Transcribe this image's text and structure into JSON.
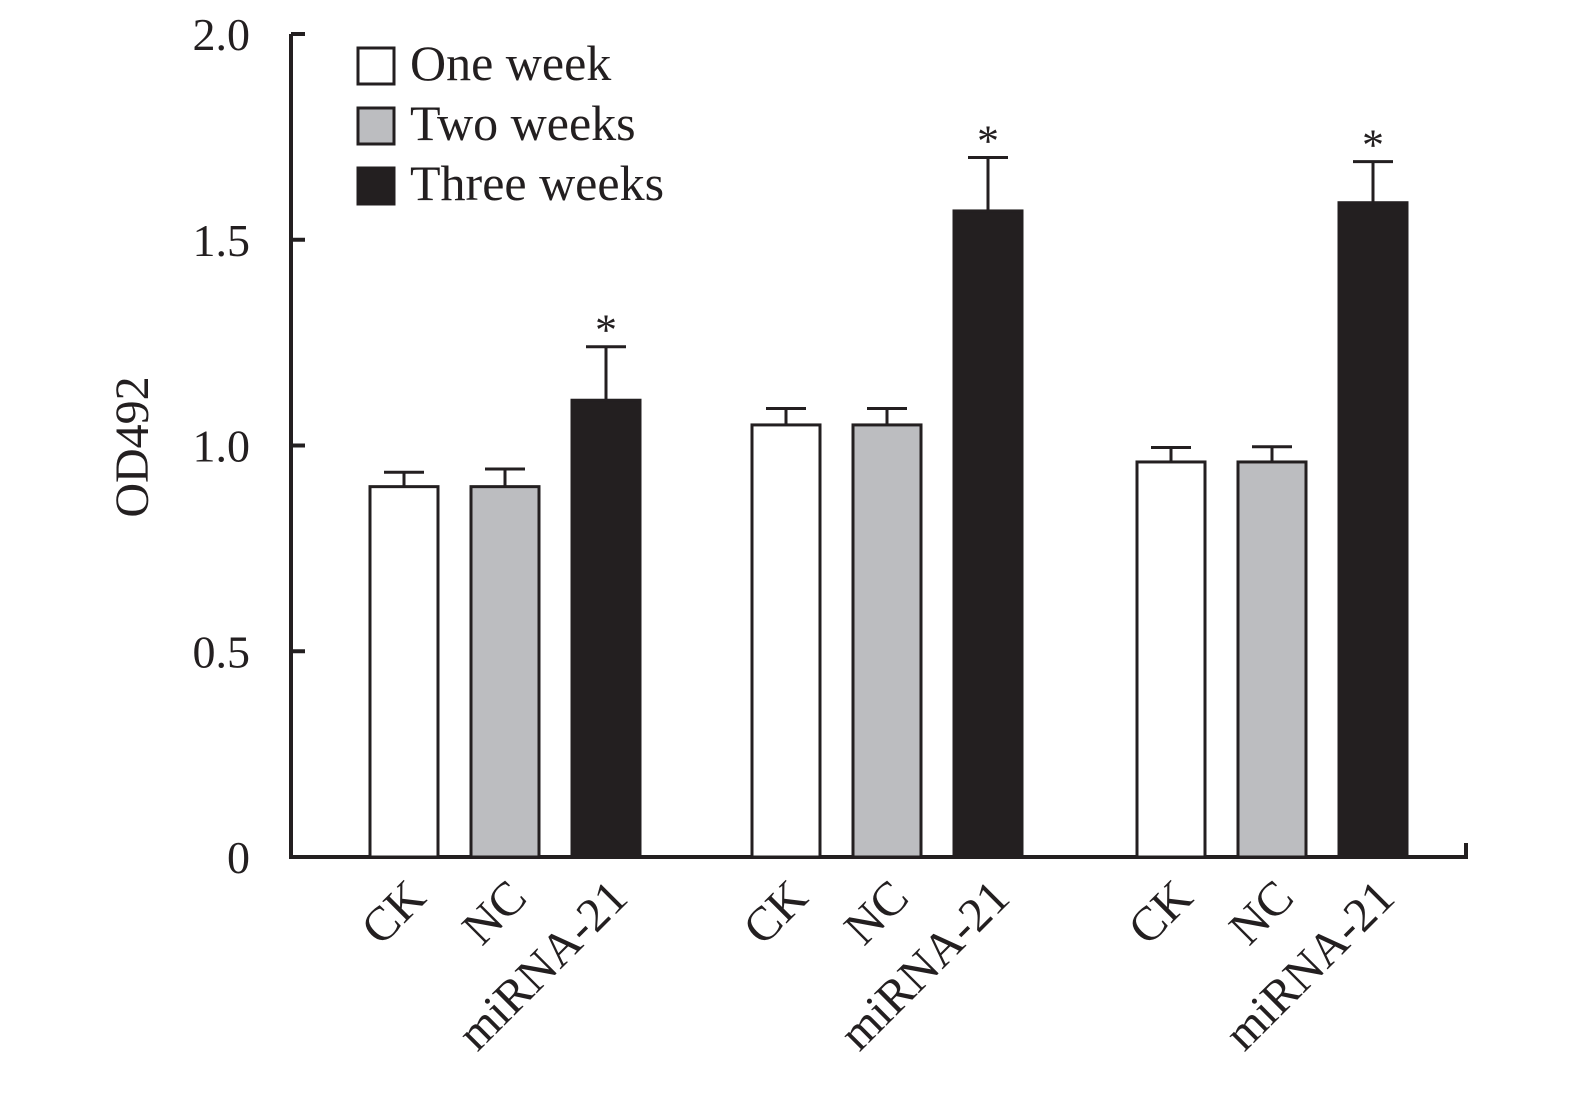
{
  "chart_data": {
    "type": "bar",
    "ylabel": "OD492",
    "xlabel": "",
    "ylim": [
      0,
      2.0
    ],
    "yticks": [
      0,
      0.5,
      1.0,
      1.5,
      2.0
    ],
    "ytick_labels": [
      "0",
      "0.5",
      "1.0",
      "1.5",
      "2.0"
    ],
    "grid": false,
    "legend_position": "top-left",
    "groups": [
      {
        "bars": [
          {
            "category": "CK",
            "series": "One week",
            "value": 0.9,
            "error": 0.035,
            "significant": false
          },
          {
            "category": "NC",
            "series": "Two weeks",
            "value": 0.9,
            "error": 0.043,
            "significant": false
          },
          {
            "category": "miRNA-21",
            "series": "Three weeks",
            "value": 1.11,
            "error": 0.13,
            "significant": true
          }
        ]
      },
      {
        "bars": [
          {
            "category": "CK",
            "series": "One week",
            "value": 1.05,
            "error": 0.04,
            "significant": false
          },
          {
            "category": "NC",
            "series": "Two weeks",
            "value": 1.05,
            "error": 0.04,
            "significant": false
          },
          {
            "category": "miRNA-21",
            "series": "Three weeks",
            "value": 1.57,
            "error": 0.13,
            "significant": true
          }
        ]
      },
      {
        "bars": [
          {
            "category": "CK",
            "series": "One week",
            "value": 0.96,
            "error": 0.035,
            "significant": false
          },
          {
            "category": "NC",
            "series": "Two weeks",
            "value": 0.96,
            "error": 0.037,
            "significant": false
          },
          {
            "category": "miRNA-21",
            "series": "Three weeks",
            "value": 1.59,
            "error": 0.1,
            "significant": true
          }
        ]
      }
    ],
    "series": [
      {
        "name": "One week",
        "color": "#ffffff"
      },
      {
        "name": "Two weeks",
        "color": "#bcbdc0"
      },
      {
        "name": "Three weeks",
        "color": "#231f20"
      }
    ],
    "significance_marker": "*",
    "axis_color": "#231f20"
  }
}
